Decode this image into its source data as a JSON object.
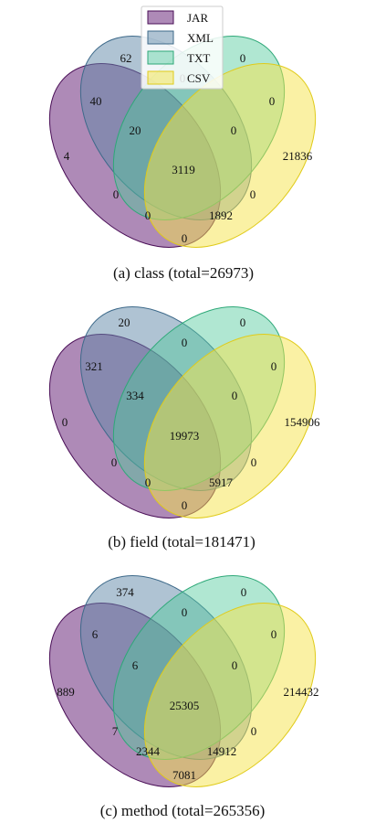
{
  "legend": [
    {
      "name": "JAR",
      "fill": "#6b2a7b",
      "stroke": "#4a0f57"
    },
    {
      "name": "XML",
      "fill": "#5f88a8",
      "stroke": "#3e6a8a"
    },
    {
      "name": "TXT",
      "fill": "#4fc99b",
      "stroke": "#2ea878"
    },
    {
      "name": "CSV",
      "fill": "#f5e34a",
      "stroke": "#e0cb1a"
    }
  ],
  "panels": [
    {
      "caption": "(a) class (total=26973)",
      "regions": {
        "xml_only": "62",
        "txt_only": "0",
        "jar_xml": "40",
        "xml_txt": "0",
        "txt_csv": "0",
        "jar_xml_txt": "20",
        "xml_txt_csv": "0",
        "jar_only": "4",
        "all": "3119",
        "csv_only": "21836",
        "jar_txt": "0",
        "xml_csv": "0",
        "jar_xml_csv": "0",
        "jar_txt_csv": "1892",
        "jar_csv": "0"
      }
    },
    {
      "caption": "(b) field (total=181471)",
      "regions": {
        "xml_only": "20",
        "txt_only": "0",
        "jar_xml": "321",
        "xml_txt": "0",
        "txt_csv": "0",
        "jar_xml_txt": "334",
        "xml_txt_csv": "0",
        "jar_only": "0",
        "all": "19973",
        "csv_only": "154906",
        "jar_txt": "0",
        "xml_csv": "0",
        "jar_xml_csv": "0",
        "jar_txt_csv": "5917",
        "jar_csv": "0"
      }
    },
    {
      "caption": "(c) method (total=265356)",
      "regions": {
        "xml_only": "374",
        "txt_only": "0",
        "jar_xml": "6",
        "xml_txt": "0",
        "txt_csv": "0",
        "jar_xml_txt": "6",
        "xml_txt_csv": "0",
        "jar_only": "889",
        "all": "25305",
        "csv_only": "214432",
        "jar_txt": "7",
        "xml_csv": "0",
        "jar_xml_csv": "2344",
        "jar_txt_csv": "14912",
        "jar_csv": "7081"
      }
    }
  ]
}
